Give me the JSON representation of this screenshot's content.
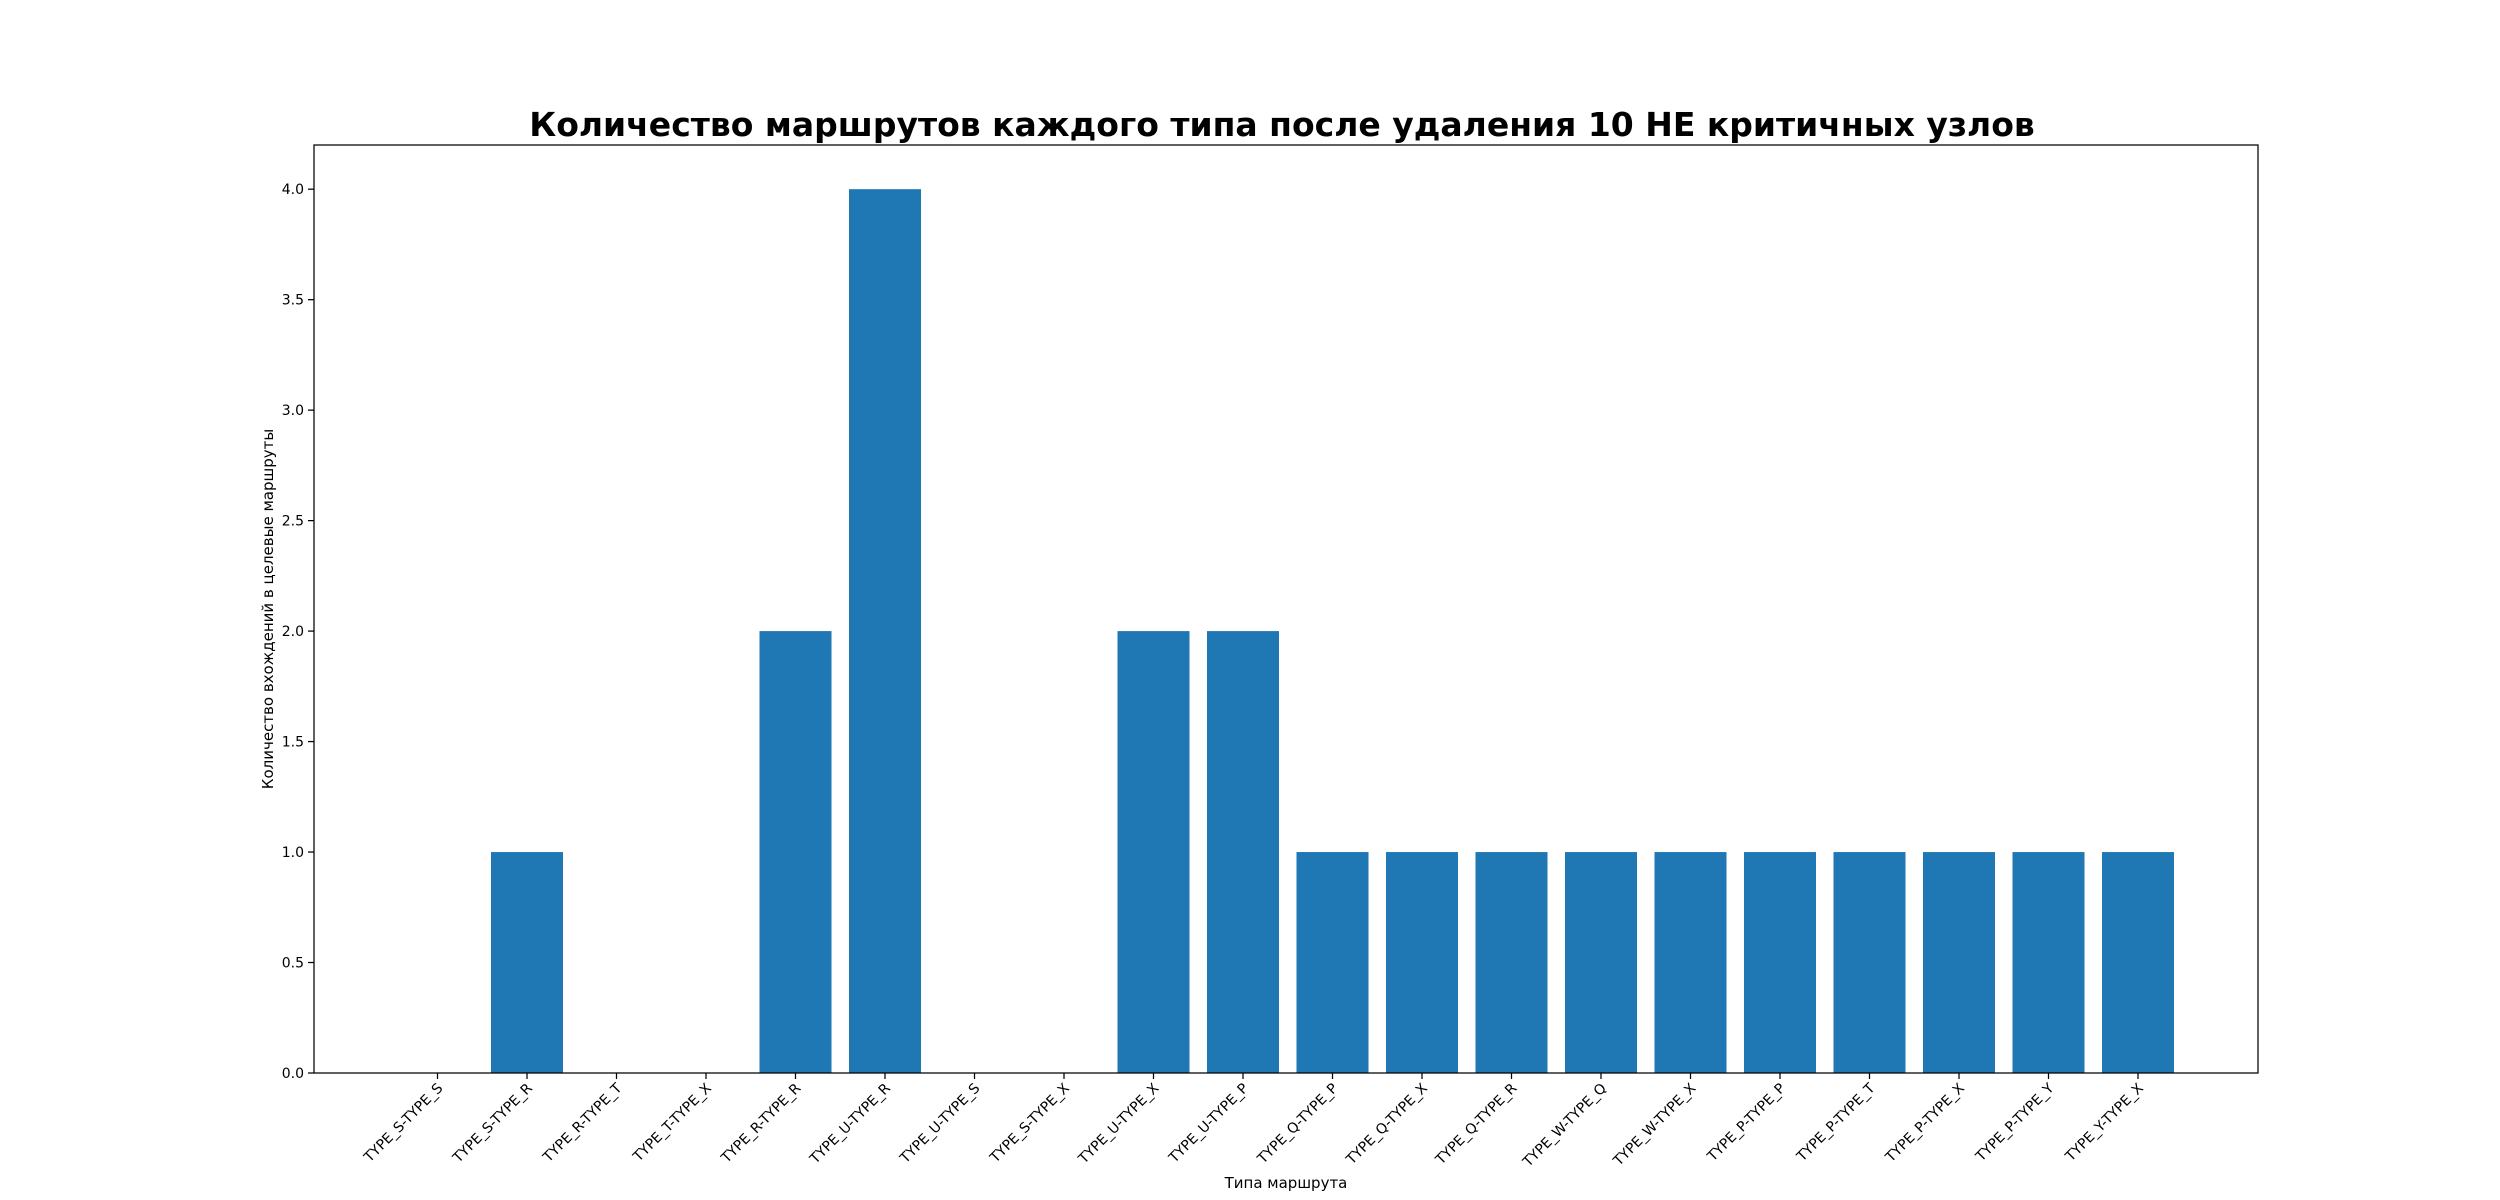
{
  "chart_data": {
    "type": "bar",
    "title": "Количество маршрутов каждого типа после удаления 10 НЕ критичных узлов",
    "xlabel": "Типа маршрута",
    "ylabel": "Количество вхождений в целевые маршруты",
    "categories": [
      "TYPE_S-TYPE_S",
      "TYPE_S-TYPE_R",
      "TYPE_R-TYPE_T",
      "TYPE_T-TYPE_X",
      "TYPE_R-TYPE_R",
      "TYPE_U-TYPE_R",
      "TYPE_U-TYPE_S",
      "TYPE_S-TYPE_X",
      "TYPE_U-TYPE_X",
      "TYPE_U-TYPE_P",
      "TYPE_Q-TYPE_P",
      "TYPE_Q-TYPE_X",
      "TYPE_Q-TYPE_R",
      "TYPE_W-TYPE_Q",
      "TYPE_W-TYPE_X",
      "TYPE_P-TYPE_P",
      "TYPE_P-TYPE_T",
      "TYPE_P-TYPE_X",
      "TYPE_P-TYPE_Y",
      "TYPE_Y-TYPE_X"
    ],
    "values": [
      0,
      1,
      0,
      0,
      2,
      4,
      0,
      0,
      2,
      2,
      1,
      1,
      1,
      1,
      1,
      1,
      1,
      1,
      1,
      1
    ],
    "ylim": [
      0,
      4.2
    ],
    "yticks": [
      "0.0",
      "0.5",
      "1.0",
      "1.5",
      "2.0",
      "2.5",
      "3.0",
      "3.5",
      "4.0"
    ],
    "bar_color": "#1f77b4",
    "grid": false,
    "legend": "none"
  }
}
